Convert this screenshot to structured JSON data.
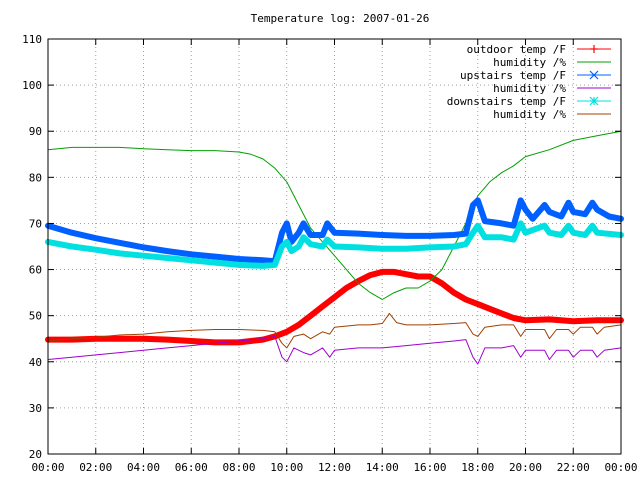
{
  "chart_data": {
    "type": "line",
    "title": "Temperature log: 2007-01-26",
    "xlabel": "",
    "ylabel": "",
    "x_range_hours": [
      0,
      24
    ],
    "ylim": [
      20,
      110
    ],
    "grid": true,
    "legend_position": "top-right",
    "x_tick_labels": [
      "00:00",
      "02:00",
      "04:00",
      "06:00",
      "08:00",
      "10:00",
      "12:00",
      "14:00",
      "16:00",
      "18:00",
      "20:00",
      "22:00",
      "00:00"
    ],
    "y_tick_labels": [
      "20",
      "30",
      "40",
      "50",
      "60",
      "70",
      "80",
      "90",
      "100",
      "110"
    ],
    "series": [
      {
        "name": "outdoor temp /F",
        "color": "#ff0000",
        "marker": "plus",
        "width": 6,
        "points": [
          [
            0,
            44.8
          ],
          [
            1,
            44.8
          ],
          [
            2,
            45
          ],
          [
            3,
            45
          ],
          [
            4,
            45
          ],
          [
            5,
            44.8
          ],
          [
            6,
            44.5
          ],
          [
            7,
            44.2
          ],
          [
            8,
            44.2
          ],
          [
            9,
            44.8
          ],
          [
            9.5,
            45.5
          ],
          [
            10,
            46.5
          ],
          [
            10.5,
            48
          ],
          [
            11,
            50
          ],
          [
            11.5,
            52
          ],
          [
            12,
            54
          ],
          [
            12.5,
            56
          ],
          [
            13,
            57.5
          ],
          [
            13.5,
            58.8
          ],
          [
            14,
            59.5
          ],
          [
            14.5,
            59.5
          ],
          [
            15,
            59
          ],
          [
            15.5,
            58.5
          ],
          [
            16,
            58.5
          ],
          [
            16.5,
            57
          ],
          [
            17,
            55
          ],
          [
            17.5,
            53.5
          ],
          [
            18,
            52.5
          ],
          [
            18.5,
            51.5
          ],
          [
            19,
            50.5
          ],
          [
            19.5,
            49.5
          ],
          [
            20,
            49
          ],
          [
            21,
            49.2
          ],
          [
            22,
            48.8
          ],
          [
            23,
            49
          ],
          [
            24,
            49
          ]
        ]
      },
      {
        "name": "humidity /%",
        "color": "#00a000",
        "marker": "none",
        "width": 1,
        "points": [
          [
            0,
            86
          ],
          [
            1,
            86.5
          ],
          [
            2,
            86.5
          ],
          [
            3,
            86.5
          ],
          [
            4,
            86.2
          ],
          [
            5,
            86
          ],
          [
            6,
            85.8
          ],
          [
            7,
            85.8
          ],
          [
            8,
            85.5
          ],
          [
            8.5,
            85
          ],
          [
            9,
            84
          ],
          [
            9.5,
            82
          ],
          [
            10,
            79
          ],
          [
            10.5,
            74
          ],
          [
            11,
            69
          ],
          [
            11.5,
            66
          ],
          [
            12,
            63
          ],
          [
            12.5,
            60
          ],
          [
            13,
            57
          ],
          [
            13.5,
            55
          ],
          [
            14,
            53.5
          ],
          [
            14.5,
            55
          ],
          [
            15,
            56
          ],
          [
            15.5,
            56
          ],
          [
            16,
            57.5
          ],
          [
            16.5,
            60
          ],
          [
            17,
            65
          ],
          [
            17.5,
            70
          ],
          [
            18,
            76
          ],
          [
            18.5,
            79
          ],
          [
            19,
            81
          ],
          [
            19.5,
            82.5
          ],
          [
            20,
            84.5
          ],
          [
            21,
            86
          ],
          [
            22,
            88
          ],
          [
            23,
            89
          ],
          [
            24,
            90
          ]
        ]
      },
      {
        "name": "upstairs temp /F",
        "color": "#0060ff",
        "marker": "cross",
        "width": 6,
        "points": [
          [
            0,
            69.5
          ],
          [
            1,
            68
          ],
          [
            2,
            66.8
          ],
          [
            3,
            65.8
          ],
          [
            4,
            64.8
          ],
          [
            5,
            64
          ],
          [
            6,
            63.3
          ],
          [
            7,
            62.8
          ],
          [
            8,
            62.3
          ],
          [
            9,
            62
          ],
          [
            9.5,
            61.8
          ],
          [
            9.8,
            68
          ],
          [
            10,
            70
          ],
          [
            10.2,
            66
          ],
          [
            10.5,
            68
          ],
          [
            10.7,
            70
          ],
          [
            11,
            67.5
          ],
          [
            11.5,
            67.5
          ],
          [
            11.7,
            70
          ],
          [
            12,
            68
          ],
          [
            13,
            67.8
          ],
          [
            14,
            67.5
          ],
          [
            15,
            67.3
          ],
          [
            16,
            67.3
          ],
          [
            17,
            67.5
          ],
          [
            17.5,
            67.8
          ],
          [
            17.8,
            74
          ],
          [
            18,
            75
          ],
          [
            18.3,
            70.5
          ],
          [
            19,
            70
          ],
          [
            19.5,
            69.5
          ],
          [
            19.8,
            75
          ],
          [
            20,
            73
          ],
          [
            20.3,
            71
          ],
          [
            20.8,
            74
          ],
          [
            21,
            72.5
          ],
          [
            21.5,
            71.5
          ],
          [
            21.8,
            74.5
          ],
          [
            22,
            72.5
          ],
          [
            22.5,
            72
          ],
          [
            22.8,
            74.5
          ],
          [
            23,
            73
          ],
          [
            23.5,
            71.5
          ],
          [
            24,
            71
          ]
        ]
      },
      {
        "name": "humidity /%",
        "color": "#a000d0",
        "marker": "none",
        "width": 1,
        "points": [
          [
            0,
            40.5
          ],
          [
            1,
            41
          ],
          [
            2,
            41.5
          ],
          [
            3,
            42
          ],
          [
            4,
            42.5
          ],
          [
            5,
            43
          ],
          [
            6,
            43.5
          ],
          [
            7,
            44
          ],
          [
            8,
            44.5
          ],
          [
            9,
            45
          ],
          [
            9.5,
            45.5
          ],
          [
            9.8,
            41
          ],
          [
            10,
            40
          ],
          [
            10.3,
            43
          ],
          [
            10.7,
            42
          ],
          [
            11,
            41.5
          ],
          [
            11.5,
            43
          ],
          [
            11.8,
            41
          ],
          [
            12,
            42.5
          ],
          [
            13,
            43
          ],
          [
            14,
            43
          ],
          [
            15,
            43.5
          ],
          [
            16,
            44
          ],
          [
            17,
            44.5
          ],
          [
            17.5,
            44.8
          ],
          [
            17.8,
            41
          ],
          [
            18,
            39.5
          ],
          [
            18.3,
            43
          ],
          [
            19,
            43
          ],
          [
            19.5,
            43.5
          ],
          [
            19.8,
            41
          ],
          [
            20,
            42.5
          ],
          [
            20.8,
            42.5
          ],
          [
            21,
            40.5
          ],
          [
            21.3,
            42.5
          ],
          [
            21.8,
            42.5
          ],
          [
            22,
            41
          ],
          [
            22.3,
            42.5
          ],
          [
            22.8,
            42.5
          ],
          [
            23,
            41
          ],
          [
            23.3,
            42.5
          ],
          [
            24,
            43
          ]
        ]
      },
      {
        "name": "downstairs temp /F",
        "color": "#00e0e0",
        "marker": "star",
        "width": 6,
        "points": [
          [
            0,
            66
          ],
          [
            1,
            65
          ],
          [
            2,
            64.3
          ],
          [
            3,
            63.5
          ],
          [
            4,
            63
          ],
          [
            5,
            62.5
          ],
          [
            6,
            62
          ],
          [
            7,
            61.5
          ],
          [
            8,
            61
          ],
          [
            9,
            60.8
          ],
          [
            9.5,
            61
          ],
          [
            9.8,
            65
          ],
          [
            10,
            66
          ],
          [
            10.2,
            64
          ],
          [
            10.5,
            65
          ],
          [
            10.7,
            67
          ],
          [
            11,
            65.5
          ],
          [
            11.5,
            65
          ],
          [
            11.7,
            66.5
          ],
          [
            12,
            65
          ],
          [
            13,
            64.8
          ],
          [
            14,
            64.5
          ],
          [
            15,
            64.5
          ],
          [
            16,
            64.8
          ],
          [
            17,
            65
          ],
          [
            17.5,
            65.5
          ],
          [
            17.8,
            68
          ],
          [
            18,
            69.5
          ],
          [
            18.3,
            67
          ],
          [
            19,
            67
          ],
          [
            19.5,
            66.5
          ],
          [
            19.8,
            70
          ],
          [
            20,
            68
          ],
          [
            20.8,
            69.5
          ],
          [
            21,
            68
          ],
          [
            21.5,
            67.5
          ],
          [
            21.8,
            69.5
          ],
          [
            22,
            68
          ],
          [
            22.5,
            67.5
          ],
          [
            22.8,
            69.5
          ],
          [
            23,
            68
          ],
          [
            24,
            67.5
          ]
        ]
      },
      {
        "name": "humidity /%",
        "color": "#a04000",
        "marker": "none",
        "width": 1,
        "points": [
          [
            0,
            44.5
          ],
          [
            1,
            45
          ],
          [
            2,
            45.3
          ],
          [
            3,
            45.8
          ],
          [
            4,
            46
          ],
          [
            5,
            46.5
          ],
          [
            6,
            46.8
          ],
          [
            7,
            47
          ],
          [
            8,
            47
          ],
          [
            9,
            46.8
          ],
          [
            9.5,
            46.5
          ],
          [
            9.8,
            44
          ],
          [
            10,
            43
          ],
          [
            10.3,
            45.5
          ],
          [
            10.7,
            46
          ],
          [
            11,
            45
          ],
          [
            11.5,
            46.5
          ],
          [
            11.8,
            46
          ],
          [
            12,
            47.5
          ],
          [
            13,
            48
          ],
          [
            13.5,
            48
          ],
          [
            14,
            48.3
          ],
          [
            14.3,
            50.5
          ],
          [
            14.6,
            48.5
          ],
          [
            15,
            48
          ],
          [
            16,
            48
          ],
          [
            17,
            48.3
          ],
          [
            17.5,
            48.5
          ],
          [
            17.8,
            46
          ],
          [
            18,
            45.5
          ],
          [
            18.3,
            47.5
          ],
          [
            19,
            48
          ],
          [
            19.5,
            48
          ],
          [
            19.8,
            45.5
          ],
          [
            20,
            47
          ],
          [
            20.8,
            47
          ],
          [
            21,
            45
          ],
          [
            21.3,
            47
          ],
          [
            21.8,
            47
          ],
          [
            22,
            46
          ],
          [
            22.3,
            47.5
          ],
          [
            22.8,
            47.5
          ],
          [
            23,
            46
          ],
          [
            23.3,
            47.5
          ],
          [
            24,
            48
          ]
        ]
      }
    ]
  }
}
